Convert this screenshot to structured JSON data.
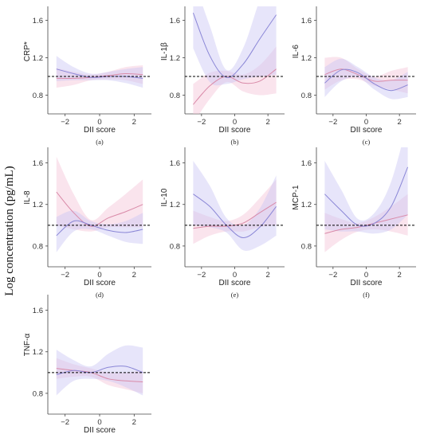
{
  "figure": {
    "global_ylabel": "Log concentration (pg/mL)",
    "colors": {
      "band_a": "#f4c4d6",
      "line_a": "#d98aa8",
      "band_b": "#c9c6f5",
      "line_b": "#8a86d6",
      "ref": "#000000"
    }
  },
  "chart_data": [
    {
      "type": "line",
      "panel": "(a)",
      "ylabel": "CRP*",
      "xlabel": "DII score",
      "xlim": [
        -3,
        3
      ],
      "ylim": [
        0.6,
        1.75
      ],
      "xticks": [
        -2,
        0,
        2
      ],
      "yticks": [
        0.8,
        1.2,
        1.6
      ],
      "reference_y": 1.0,
      "x": [
        -2.5,
        -1.5,
        -0.5,
        0.5,
        1.5,
        2.5
      ],
      "series": [
        {
          "values": [
            0.98,
            0.98,
            0.99,
            1.01,
            1.03,
            1.02
          ],
          "lower": [
            0.88,
            0.91,
            0.96,
            0.97,
            0.96,
            0.92
          ],
          "upper": [
            1.09,
            1.05,
            1.02,
            1.05,
            1.1,
            1.12
          ]
        },
        {
          "values": [
            1.08,
            1.03,
            0.99,
            1.0,
            1.0,
            0.98
          ],
          "lower": [
            0.95,
            0.96,
            0.96,
            0.96,
            0.93,
            0.88
          ],
          "upper": [
            1.22,
            1.1,
            1.03,
            1.05,
            1.08,
            1.1
          ]
        }
      ]
    },
    {
      "type": "line",
      "panel": "(b)",
      "ylabel": "IL-1β",
      "xlabel": "DII score",
      "xlim": [
        -3,
        3
      ],
      "ylim": [
        0.6,
        1.75
      ],
      "xticks": [
        -2,
        0,
        2
      ],
      "yticks": [
        0.8,
        1.2,
        1.6
      ],
      "reference_y": 1.0,
      "x": [
        -2.5,
        -1.5,
        -0.5,
        0.5,
        1.5,
        2.5
      ],
      "series": [
        {
          "values": [
            0.7,
            0.9,
            1.0,
            0.93,
            0.95,
            1.08
          ],
          "lower": [
            0.5,
            0.76,
            0.94,
            0.84,
            0.8,
            0.82
          ],
          "upper": [
            0.92,
            1.04,
            1.06,
            1.02,
            1.12,
            1.32
          ]
        },
        {
          "values": [
            1.68,
            1.22,
            0.99,
            1.13,
            1.4,
            1.66
          ],
          "lower": [
            1.3,
            0.94,
            0.92,
            0.97,
            1.0,
            1.02
          ],
          "upper": [
            2.05,
            1.54,
            1.07,
            1.3,
            1.82,
            2.3
          ]
        }
      ]
    },
    {
      "type": "line",
      "panel": "(c)",
      "ylabel": "IL-6",
      "xlabel": "DII score",
      "xlim": [
        -3,
        3
      ],
      "ylim": [
        0.6,
        1.75
      ],
      "xticks": [
        -2,
        0,
        2
      ],
      "yticks": [
        0.8,
        1.2,
        1.6
      ],
      "reference_y": 1.0,
      "x": [
        -2.5,
        -1.5,
        -0.5,
        0.5,
        1.5,
        2.5
      ],
      "series": [
        {
          "values": [
            1.02,
            1.08,
            1.02,
            0.95,
            0.96,
            0.96
          ],
          "lower": [
            0.86,
            0.96,
            0.97,
            0.9,
            0.86,
            0.82
          ],
          "upper": [
            1.2,
            1.2,
            1.08,
            1.0,
            1.06,
            1.1
          ]
        },
        {
          "values": [
            0.93,
            1.07,
            1.04,
            0.92,
            0.85,
            0.91
          ],
          "lower": [
            0.78,
            0.95,
            0.99,
            0.86,
            0.76,
            0.78
          ],
          "upper": [
            1.1,
            1.19,
            1.1,
            0.99,
            0.96,
            1.05
          ]
        }
      ]
    },
    {
      "type": "line",
      "panel": "(d)",
      "ylabel": "IL-8",
      "xlabel": "DII score",
      "xlim": [
        -3,
        3
      ],
      "ylim": [
        0.6,
        1.75
      ],
      "xticks": [
        -2,
        0,
        2
      ],
      "yticks": [
        0.8,
        1.2,
        1.6
      ],
      "reference_y": 1.0,
      "x": [
        -2.5,
        -1.5,
        -0.5,
        0.5,
        1.5,
        2.5
      ],
      "series": [
        {
          "values": [
            1.32,
            1.12,
            0.99,
            1.07,
            1.13,
            1.2
          ],
          "lower": [
            1.0,
            0.96,
            0.94,
            0.98,
            0.98,
            0.98
          ],
          "upper": [
            1.66,
            1.3,
            1.05,
            1.17,
            1.3,
            1.44
          ]
        },
        {
          "values": [
            0.9,
            1.04,
            1.0,
            0.95,
            0.93,
            0.96
          ],
          "lower": [
            0.74,
            0.94,
            0.96,
            0.9,
            0.84,
            0.82
          ],
          "upper": [
            1.08,
            1.14,
            1.04,
            1.01,
            1.04,
            1.12
          ]
        }
      ]
    },
    {
      "type": "line",
      "panel": "(e)",
      "ylabel": "IL-10",
      "xlabel": "DII score",
      "xlim": [
        -3,
        3
      ],
      "ylim": [
        0.6,
        1.75
      ],
      "xticks": [
        -2,
        0,
        2
      ],
      "yticks": [
        0.8,
        1.2,
        1.6
      ],
      "reference_y": 1.0,
      "x": [
        -2.5,
        -1.5,
        -0.5,
        0.5,
        1.5,
        2.5
      ],
      "series": [
        {
          "values": [
            0.97,
            0.99,
            0.99,
            1.02,
            1.12,
            1.22
          ],
          "lower": [
            0.82,
            0.9,
            0.94,
            0.94,
            0.98,
            1.0
          ],
          "upper": [
            1.14,
            1.08,
            1.04,
            1.1,
            1.26,
            1.44
          ]
        },
        {
          "values": [
            1.3,
            1.18,
            1.0,
            0.88,
            0.98,
            1.18
          ],
          "lower": [
            1.0,
            0.98,
            0.93,
            0.76,
            0.8,
            0.9
          ],
          "upper": [
            1.62,
            1.38,
            1.07,
            1.0,
            1.16,
            1.48
          ]
        }
      ]
    },
    {
      "type": "line",
      "panel": "(f)",
      "ylabel": "MCP-1",
      "xlabel": "DII score",
      "xlim": [
        -3,
        3
      ],
      "ylim": [
        0.6,
        1.75
      ],
      "xticks": [
        -2,
        0,
        2
      ],
      "yticks": [
        0.8,
        1.2,
        1.6
      ],
      "reference_y": 1.0,
      "x": [
        -2.5,
        -1.5,
        -0.5,
        0.5,
        1.5,
        2.5
      ],
      "series": [
        {
          "values": [
            0.92,
            0.96,
            0.98,
            1.02,
            1.06,
            1.1
          ],
          "lower": [
            0.74,
            0.86,
            0.94,
            0.96,
            0.94,
            0.9
          ],
          "upper": [
            1.12,
            1.06,
            1.02,
            1.08,
            1.18,
            1.3
          ]
        },
        {
          "values": [
            1.3,
            1.14,
            1.0,
            1.02,
            1.18,
            1.56
          ],
          "lower": [
            0.96,
            0.94,
            0.94,
            0.92,
            0.96,
            1.1
          ],
          "upper": [
            1.62,
            1.34,
            1.06,
            1.12,
            1.42,
            2.0
          ]
        }
      ]
    },
    {
      "type": "line",
      "panel": "(g)",
      "ylabel": "TNF-α",
      "xlabel": "DII score",
      "xlim": [
        -3,
        3
      ],
      "ylim": [
        0.6,
        1.75
      ],
      "xticks": [
        -2,
        0,
        2
      ],
      "yticks": [
        0.8,
        1.2,
        1.6
      ],
      "reference_y": 1.0,
      "x": [
        -2.5,
        -1.5,
        -0.5,
        0.5,
        1.5,
        2.5
      ],
      "series": [
        {
          "values": [
            1.04,
            1.02,
            1.0,
            0.94,
            0.92,
            0.91
          ],
          "lower": [
            0.94,
            0.96,
            0.96,
            0.88,
            0.84,
            0.8
          ],
          "upper": [
            1.14,
            1.08,
            1.04,
            1.0,
            1.0,
            1.02
          ]
        },
        {
          "values": [
            0.98,
            1.02,
            1.0,
            1.05,
            1.06,
            1.0
          ],
          "lower": [
            0.78,
            0.92,
            0.94,
            0.92,
            0.86,
            0.78
          ],
          "upper": [
            1.22,
            1.12,
            1.06,
            1.18,
            1.26,
            1.24
          ]
        }
      ]
    }
  ]
}
